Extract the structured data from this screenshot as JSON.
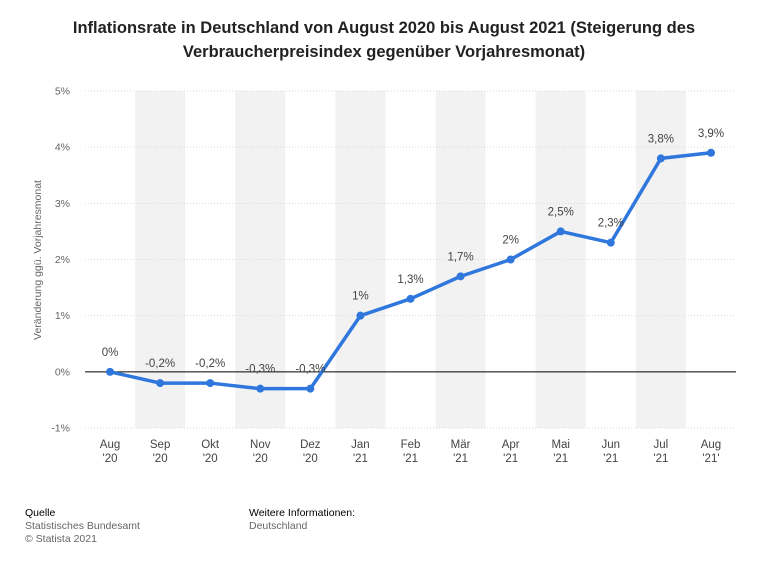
{
  "title": "Inflationsrate in Deutschland von August 2020 bis August 2021 (Steigerung des Verbraucherpreisindex gegenüber Vorjahresmonat)",
  "ylabel": "Veränderung ggü. Vorjahresmonat",
  "footer": {
    "source_heading": "Quelle",
    "source_line1": "Statistisches Bundesamt",
    "source_line2": "© Statista 2021",
    "info_heading": "Weitere Informationen:",
    "info_line1": "Deutschland"
  },
  "colors": {
    "line": "#2f77dc",
    "band": "#f2f2f2",
    "grid": "#d9d9d9",
    "zero_line": "#000000",
    "text": "#444444"
  },
  "chart_data": {
    "type": "line",
    "title": "Inflationsrate in Deutschland von August 2020 bis August 2021 (Steigerung des Verbraucherpreisindex gegenüber Vorjahresmonat)",
    "xlabel": "",
    "ylabel": "Veränderung ggü. Vorjahresmonat",
    "categories": [
      [
        "Aug",
        "'20"
      ],
      [
        "Sep",
        "'20"
      ],
      [
        "Okt",
        "'20"
      ],
      [
        "Nov",
        "'20"
      ],
      [
        "Dez",
        "'20"
      ],
      [
        "Jan",
        "'21"
      ],
      [
        "Feb",
        "'21"
      ],
      [
        "Mär",
        "'21"
      ],
      [
        "Apr",
        "'21"
      ],
      [
        "Mai",
        "'21"
      ],
      [
        "Jun",
        "'21"
      ],
      [
        "Jul",
        "'21"
      ],
      [
        "Aug",
        "'21'"
      ]
    ],
    "values": [
      0,
      -0.2,
      -0.2,
      -0.3,
      -0.3,
      1,
      1.3,
      1.7,
      2,
      2.5,
      2.3,
      3.8,
      3.9
    ],
    "data_labels": [
      "0%",
      "-0,2%",
      "-0,2%",
      "-0,3%",
      "-0,3%",
      "1%",
      "1,3%",
      "1,7%",
      "2%",
      "2,5%",
      "2,3%",
      "3,8%",
      "3,9%"
    ],
    "ylim": [
      -1,
      5
    ],
    "yticks": [
      -1,
      0,
      1,
      2,
      3,
      4,
      5
    ],
    "ytick_labels": [
      "-1%",
      "0%",
      "1%",
      "2%",
      "3%",
      "4%",
      "5%"
    ],
    "grid": true,
    "legend": "none"
  }
}
